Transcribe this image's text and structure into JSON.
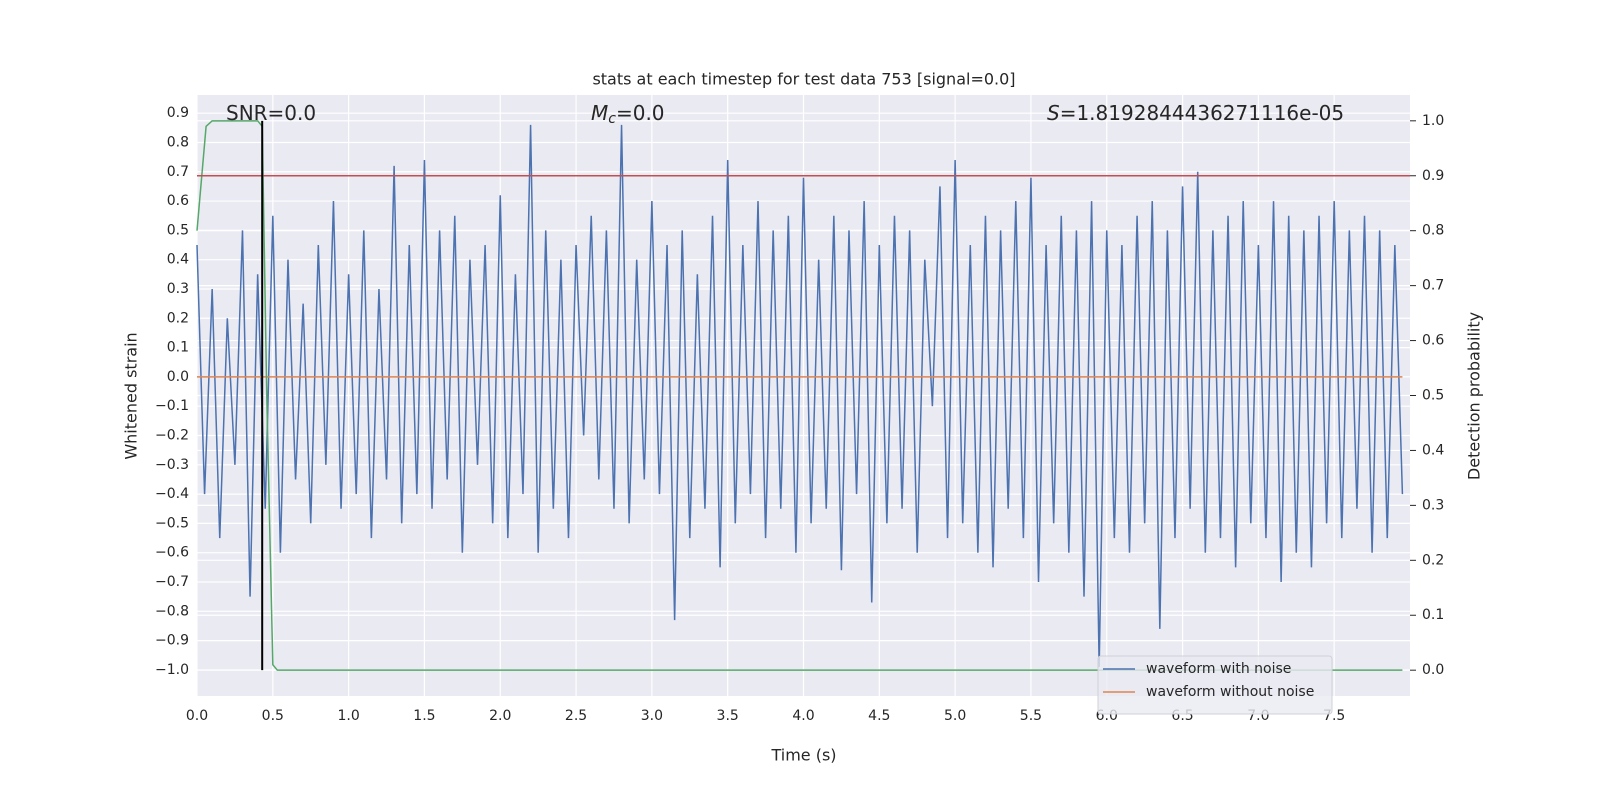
{
  "chart_data": {
    "type": "line",
    "title": "stats at each timestep for test data 753 [signal=0.0]",
    "xlabel": "Time (s)",
    "ylabel": "Whitened strain",
    "y2label": "Detection probability",
    "annotations": [
      {
        "text": "SNR=0.0"
      },
      {
        "symbol": "M",
        "subscript": "c",
        "text": "=0.0"
      },
      {
        "symbol": "S",
        "text": "=1.8192844436271116e-05"
      }
    ],
    "xlim": [
      0,
      8
    ],
    "ylim": [
      -1.089,
      0.962
    ],
    "y2lim": [
      -0.047,
      1.047
    ],
    "grid": true,
    "legend": "lower right",
    "xticks": [
      {
        "value": 0,
        "label": "0.0"
      },
      0.5,
      {
        "value": 1,
        "label": "1.0"
      },
      1.5,
      {
        "value": 2,
        "label": "2.0"
      },
      2.5,
      {
        "value": 3,
        "label": "3.0"
      },
      3.5,
      {
        "value": 4,
        "label": "4.0"
      },
      4.5,
      {
        "value": 5,
        "label": "5.0"
      },
      5.5,
      {
        "value": 6,
        "label": "6.0"
      },
      6.5,
      {
        "value": 7,
        "label": "7.0"
      },
      7.5
    ],
    "yticks": [
      {
        "value": -1,
        "label": "−1.0"
      },
      {
        "value": -0.9,
        "label": "−0.9"
      },
      {
        "value": -0.8,
        "label": "−0.8"
      },
      {
        "value": -0.7,
        "label": "−0.7"
      },
      {
        "value": -0.6,
        "label": "−0.6"
      },
      {
        "value": -0.5,
        "label": "−0.5"
      },
      {
        "value": -0.4,
        "label": "−0.4"
      },
      {
        "value": -0.3,
        "label": "−0.3"
      },
      {
        "value": -0.2,
        "label": "−0.2"
      },
      {
        "value": -0.1,
        "label": "−0.1"
      },
      {
        "value": 0,
        "label": "0.0"
      },
      0.1,
      0.2,
      0.3,
      0.4,
      0.5,
      0.6,
      0.7,
      0.8,
      0.9
    ],
    "y2ticks": [
      {
        "value": 0,
        "label": "0.0"
      },
      0.1,
      0.2,
      0.3,
      0.4,
      0.5,
      0.6,
      0.7,
      0.8,
      0.9,
      {
        "value": 1,
        "label": "1.0"
      }
    ],
    "series": [
      {
        "name": "waveform with noise",
        "color": "#4c72b0",
        "x": [
          0,
          0.05,
          0.1,
          0.15,
          0.2,
          0.25,
          0.3,
          0.35,
          0.4,
          0.45,
          0.5,
          0.55,
          0.6,
          0.65,
          0.7,
          0.75,
          0.8,
          0.85,
          0.9,
          0.95,
          1,
          1.05,
          1.1,
          1.15,
          1.2,
          1.25,
          1.3,
          1.35,
          1.4,
          1.45,
          1.5,
          1.55,
          1.6,
          1.65,
          1.7,
          1.75,
          1.8,
          1.85,
          1.9,
          1.95,
          2,
          2.05,
          2.1,
          2.15,
          2.2,
          2.25,
          2.3,
          2.35,
          2.4,
          2.45,
          2.5,
          2.55,
          2.6,
          2.65,
          2.7,
          2.75,
          2.8,
          2.85,
          2.9,
          2.95,
          3,
          3.05,
          3.1,
          3.15,
          3.2,
          3.25,
          3.3,
          3.35,
          3.4,
          3.45,
          3.5,
          3.55,
          3.6,
          3.65,
          3.7,
          3.75,
          3.8,
          3.85,
          3.9,
          3.95,
          4,
          4.05,
          4.1,
          4.15,
          4.2,
          4.25,
          4.3,
          4.35,
          4.4,
          4.45,
          4.5,
          4.55,
          4.6,
          4.65,
          4.7,
          4.75,
          4.8,
          4.85,
          4.9,
          4.95,
          5,
          5.05,
          5.1,
          5.15,
          5.2,
          5.25,
          5.3,
          5.35,
          5.4,
          5.45,
          5.5,
          5.55,
          5.6,
          5.65,
          5.7,
          5.75,
          5.8,
          5.85,
          5.9,
          5.95,
          6,
          6.05,
          6.1,
          6.15,
          6.2,
          6.25,
          6.3,
          6.35,
          6.4,
          6.45,
          6.5,
          6.55,
          6.6,
          6.65,
          6.7,
          6.75,
          6.8,
          6.85,
          6.9,
          6.95,
          7,
          7.05,
          7.1,
          7.15,
          7.2,
          7.25,
          7.3,
          7.35,
          7.4,
          7.45,
          7.5,
          7.55,
          7.6,
          7.65,
          7.7,
          7.75,
          7.8,
          7.85,
          7.9,
          7.95
        ],
        "values": [
          0.45,
          -0.4,
          0.3,
          -0.55,
          0.2,
          -0.3,
          0.5,
          -0.75,
          0.35,
          -0.45,
          0.55,
          -0.6,
          0.4,
          -0.35,
          0.25,
          -0.5,
          0.45,
          -0.3,
          0.6,
          -0.45,
          0.35,
          -0.4,
          0.5,
          -0.55,
          0.3,
          -0.35,
          0.72,
          -0.5,
          0.45,
          -0.4,
          0.74,
          -0.45,
          0.5,
          -0.35,
          0.55,
          -0.6,
          0.4,
          -0.3,
          0.45,
          -0.5,
          0.62,
          -0.55,
          0.35,
          -0.4,
          0.86,
          -0.6,
          0.5,
          -0.45,
          0.4,
          -0.55,
          0.45,
          -0.2,
          0.55,
          -0.35,
          0.5,
          -0.45,
          0.86,
          -0.5,
          0.4,
          -0.35,
          0.6,
          -0.4,
          0.45,
          -0.83,
          0.5,
          -0.55,
          0.35,
          -0.45,
          0.55,
          -0.65,
          0.74,
          -0.5,
          0.45,
          -0.4,
          0.6,
          -0.55,
          0.5,
          -0.45,
          0.55,
          -0.6,
          0.68,
          -0.5,
          0.4,
          -0.45,
          0.55,
          -0.66,
          0.5,
          -0.4,
          0.6,
          -0.77,
          0.45,
          -0.5,
          0.55,
          -0.45,
          0.5,
          -0.6,
          0.4,
          -0.1,
          0.65,
          -0.55,
          0.74,
          -0.5,
          0.45,
          -0.6,
          0.55,
          -0.65,
          0.5,
          -0.45,
          0.6,
          -0.55,
          0.68,
          -0.7,
          0.45,
          -0.5,
          0.55,
          -0.6,
          0.5,
          -0.75,
          0.6,
          -0.99,
          0.5,
          -0.55,
          0.45,
          -0.6,
          0.55,
          -0.5,
          0.6,
          -0.86,
          0.5,
          -0.55,
          0.65,
          -0.45,
          0.7,
          -0.6,
          0.5,
          -0.55,
          0.55,
          -0.65,
          0.6,
          -0.5,
          0.45,
          -0.55,
          0.6,
          -0.7,
          0.55,
          -0.6,
          0.5,
          -0.65,
          0.55,
          -0.5,
          0.6,
          -0.55,
          0.5,
          -0.45,
          0.55,
          -0.6,
          0.5,
          -0.55,
          0.45,
          -0.4
        ]
      },
      {
        "name": "waveform without noise",
        "color": "#dd8452",
        "x": [
          0,
          7.95
        ],
        "values": [
          0,
          0
        ]
      },
      {
        "color": "#55a868",
        "axis": "y2",
        "x": [
          0,
          0.06,
          0.1,
          0.4,
          0.43,
          0.46,
          0.5,
          0.53,
          1,
          7.95
        ],
        "values": [
          0.8,
          0.99,
          1.0,
          1.0,
          0.99,
          0.5,
          0.01,
          0.0,
          0.0,
          0.0
        ]
      }
    ],
    "hlines": [
      {
        "y": 0.9,
        "axis": "y2",
        "color": "#c44e52"
      }
    ],
    "vlines": [
      {
        "x": 0.43,
        "ymin": 0,
        "ymax": 1,
        "axis": "y2",
        "color": "#000000"
      }
    ]
  }
}
